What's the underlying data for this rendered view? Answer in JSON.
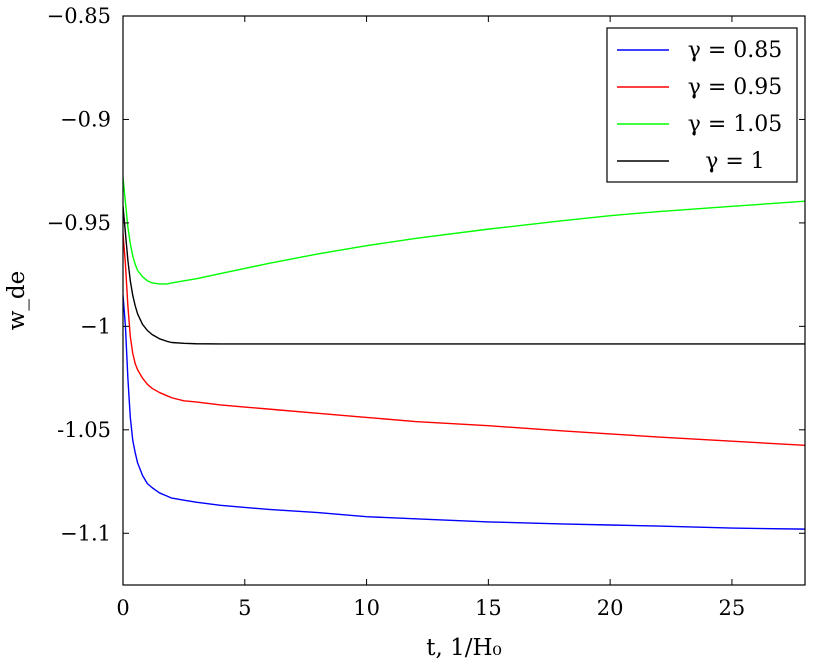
{
  "chart_data": {
    "type": "line",
    "title": "",
    "xlabel": "t, 1/H₀",
    "ylabel": "w_de",
    "xlim": [
      0,
      28
    ],
    "ylim": [
      -1.125,
      -0.85
    ],
    "xticks": [
      0,
      5,
      10,
      15,
      20,
      25
    ],
    "xtick_labels": [
      "0",
      "5",
      "10",
      "15",
      "20",
      "25"
    ],
    "yticks": [
      -0.85,
      -0.9,
      -0.95,
      -1,
      -1.05,
      -1.1
    ],
    "ytick_labels": [
      "−0.85",
      "−0.9",
      "−0.95",
      "−1",
      "-1.05",
      "−1.1"
    ],
    "grid": false,
    "legend_position": "top-right",
    "series": [
      {
        "name": "γ = 0.85",
        "color": "#0000ff",
        "x": [
          0,
          0.1,
          0.2,
          0.3,
          0.4,
          0.5,
          0.6,
          0.8,
          1.0,
          1.2,
          1.5,
          1.8,
          2.0,
          2.5,
          3,
          4,
          5,
          6,
          8,
          10,
          12,
          15,
          18,
          20,
          22,
          25,
          28
        ],
        "y": [
          -0.985,
          -1.0,
          -1.025,
          -1.044,
          -1.055,
          -1.061,
          -1.066,
          -1.072,
          -1.076,
          -1.078,
          -1.0805,
          -1.082,
          -1.083,
          -1.084,
          -1.085,
          -1.0865,
          -1.0875,
          -1.0885,
          -1.09,
          -1.092,
          -1.093,
          -1.0945,
          -1.0955,
          -1.096,
          -1.0965,
          -1.0975,
          -1.098
        ]
      },
      {
        "name": "γ = 0.95",
        "color": "#ff0000",
        "x": [
          0,
          0.1,
          0.2,
          0.3,
          0.4,
          0.5,
          0.6,
          0.8,
          1.0,
          1.2,
          1.5,
          1.8,
          2.0,
          2.5,
          3,
          4,
          5,
          6,
          8,
          10,
          12,
          15,
          18,
          20,
          22,
          25,
          28
        ],
        "y": [
          -0.955,
          -0.97,
          -0.99,
          -1.005,
          -1.013,
          -1.018,
          -1.021,
          -1.025,
          -1.028,
          -1.03,
          -1.032,
          -1.0335,
          -1.0345,
          -1.036,
          -1.0365,
          -1.038,
          -1.039,
          -1.04,
          -1.042,
          -1.044,
          -1.046,
          -1.048,
          -1.0505,
          -1.052,
          -1.0535,
          -1.0555,
          -1.0575
        ]
      },
      {
        "name": "γ = 1.05",
        "color": "#00ff00",
        "x": [
          0,
          0.1,
          0.2,
          0.3,
          0.4,
          0.5,
          0.6,
          0.8,
          1.0,
          1.2,
          1.5,
          1.8,
          2.0,
          2.5,
          3,
          4,
          5,
          6,
          8,
          10,
          12,
          15,
          18,
          20,
          22,
          25,
          28
        ],
        "y": [
          -0.928,
          -0.94,
          -0.952,
          -0.96,
          -0.966,
          -0.97,
          -0.973,
          -0.976,
          -0.978,
          -0.979,
          -0.9795,
          -0.9795,
          -0.979,
          -0.978,
          -0.977,
          -0.9745,
          -0.972,
          -0.9695,
          -0.965,
          -0.961,
          -0.9575,
          -0.953,
          -0.949,
          -0.9465,
          -0.9445,
          -0.942,
          -0.9395
        ]
      },
      {
        "name": "γ = 1",
        "color": "#000000",
        "x": [
          0,
          0.1,
          0.2,
          0.3,
          0.4,
          0.5,
          0.6,
          0.8,
          1.0,
          1.2,
          1.5,
          1.8,
          2.0,
          2.5,
          3,
          4,
          5,
          6,
          8,
          10,
          12,
          15,
          18,
          20,
          22,
          25,
          28
        ],
        "y": [
          -0.942,
          -0.955,
          -0.968,
          -0.978,
          -0.985,
          -0.99,
          -0.994,
          -0.999,
          -1.002,
          -1.004,
          -1.006,
          -1.0072,
          -1.0078,
          -1.0082,
          -1.0084,
          -1.0085,
          -1.0085,
          -1.0085,
          -1.0085,
          -1.0085,
          -1.0085,
          -1.0085,
          -1.0085,
          -1.0085,
          -1.0085,
          -1.0085,
          -1.0085
        ]
      }
    ]
  }
}
